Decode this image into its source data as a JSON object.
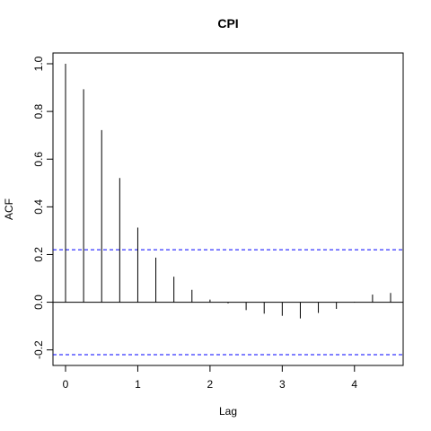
{
  "chart_data": {
    "type": "bar",
    "title": "CPI",
    "xlabel": "Lag",
    "ylabel": "ACF",
    "xlim": [
      0,
      4.5
    ],
    "ylim": [
      -0.22,
      1.0
    ],
    "x_ticks": [
      0,
      1,
      2,
      3,
      4
    ],
    "x_tick_labels": [
      "0",
      "1",
      "2",
      "3",
      "4"
    ],
    "y_ticks": [
      -0.2,
      0.0,
      0.2,
      0.4,
      0.6,
      0.8,
      1.0
    ],
    "y_tick_labels": [
      "-0.2",
      "0.0",
      "0.2",
      "0.4",
      "0.6",
      "0.8",
      "1.0"
    ],
    "lags": [
      0,
      0.25,
      0.5,
      0.75,
      1.0,
      1.25,
      1.5,
      1.75,
      2.0,
      2.25,
      2.5,
      2.75,
      3.0,
      3.25,
      3.5,
      3.75,
      4.0,
      4.25,
      4.5
    ],
    "acf": [
      1.0,
      0.893,
      0.722,
      0.521,
      0.313,
      0.187,
      0.107,
      0.052,
      0.011,
      -0.005,
      -0.033,
      -0.048,
      -0.057,
      -0.068,
      -0.045,
      -0.028,
      0.002,
      0.032,
      0.039
    ],
    "confidence_bound": 0.22,
    "zero_line": true,
    "grid": false,
    "colors": {
      "bars": "#000000",
      "bounds": "#0000ff"
    }
  }
}
